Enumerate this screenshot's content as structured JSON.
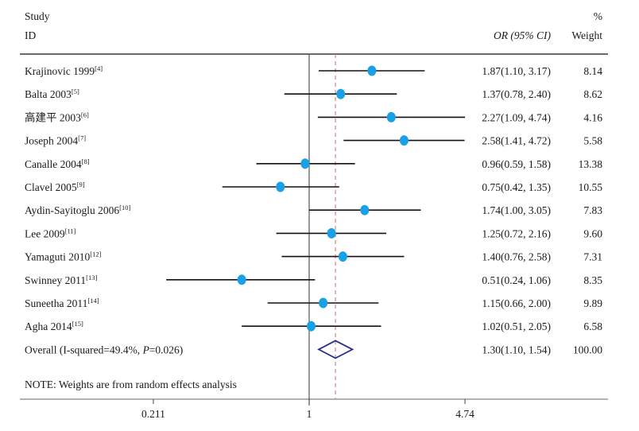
{
  "chart_data": {
    "type": "forest",
    "scale": "log",
    "header": {
      "study_line1": "Study",
      "study_line2": "ID",
      "or_label": "OR (95% CI)",
      "weight_line1": "%",
      "weight_line2": "Weight"
    },
    "studies": [
      {
        "name": "Krajinovic 1999",
        "ref": "[4]",
        "or": 1.87,
        "lower": 1.1,
        "upper": 3.17,
        "or_text": "1.87(1.10, 3.17)",
        "weight": "8.14"
      },
      {
        "name": "Balta 2003",
        "ref": "[5]",
        "or": 1.37,
        "lower": 0.78,
        "upper": 2.4,
        "or_text": "1.37(0.78, 2.40)",
        "weight": "8.62"
      },
      {
        "name": "高建平 2003",
        "ref": "[6]",
        "or": 2.27,
        "lower": 1.09,
        "upper": 4.74,
        "or_text": "2.27(1.09, 4.74)",
        "weight": "4.16"
      },
      {
        "name": "Joseph 2004",
        "ref": "[7]",
        "or": 2.58,
        "lower": 1.41,
        "upper": 4.72,
        "or_text": "2.58(1.41, 4.72)",
        "weight": "5.58"
      },
      {
        "name": "Canalle 2004",
        "ref": "[8]",
        "or": 0.96,
        "lower": 0.59,
        "upper": 1.58,
        "or_text": "0.96(0.59, 1.58)",
        "weight": "13.38"
      },
      {
        "name": "Clavel 2005",
        "ref": "[9]",
        "or": 0.75,
        "lower": 0.42,
        "upper": 1.35,
        "or_text": "0.75(0.42, 1.35)",
        "weight": "10.55"
      },
      {
        "name": "Aydin-Sayitoglu 2006",
        "ref": "[10]",
        "or": 1.74,
        "lower": 1.0,
        "upper": 3.05,
        "or_text": "1.74(1.00, 3.05)",
        "weight": "7.83"
      },
      {
        "name": "Lee 2009",
        "ref": "[11]",
        "or": 1.25,
        "lower": 0.72,
        "upper": 2.16,
        "or_text": "1.25(0.72, 2.16)",
        "weight": "9.60"
      },
      {
        "name": "Yamaguti 2010",
        "ref": "[12]",
        "or": 1.4,
        "lower": 0.76,
        "upper": 2.58,
        "or_text": "1.40(0.76, 2.58)",
        "weight": "7.31"
      },
      {
        "name": "Swinney 2011",
        "ref": "[13]",
        "or": 0.51,
        "lower": 0.24,
        "upper": 1.06,
        "or_text": "0.51(0.24, 1.06)",
        "weight": "8.35"
      },
      {
        "name": "Suneetha 2011",
        "ref": "[14]",
        "or": 1.15,
        "lower": 0.66,
        "upper": 2.0,
        "or_text": "1.15(0.66, 2.00)",
        "weight": "9.89"
      },
      {
        "name": "Agha 2014",
        "ref": "[15]",
        "or": 1.02,
        "lower": 0.51,
        "upper": 2.05,
        "or_text": "1.02(0.51, 2.05)",
        "weight": "6.58"
      }
    ],
    "overall": {
      "label_prefix": "Overall (I-squared=49.4%, ",
      "label_p": "P",
      "label_suffix": "=0.026)",
      "or": 1.3,
      "lower": 1.1,
      "upper": 1.54,
      "or_text": "1.30(1.10, 1.54)",
      "weight": "100.00"
    },
    "note": "NOTE: Weights are from random effects analysis",
    "x_ticks": [
      {
        "value": 0.211,
        "label": "0.211"
      },
      {
        "value": 1,
        "label": "1"
      },
      {
        "value": 4.74,
        "label": "4.74"
      }
    ],
    "xlim": [
      0.12,
      8.0
    ],
    "reference_line": 1,
    "colors": {
      "point": "#1aa0e6",
      "diamond": "#2a2f8a",
      "overall_line": "#d9827f",
      "ci_line": "#111111",
      "axis": "#555555"
    }
  }
}
